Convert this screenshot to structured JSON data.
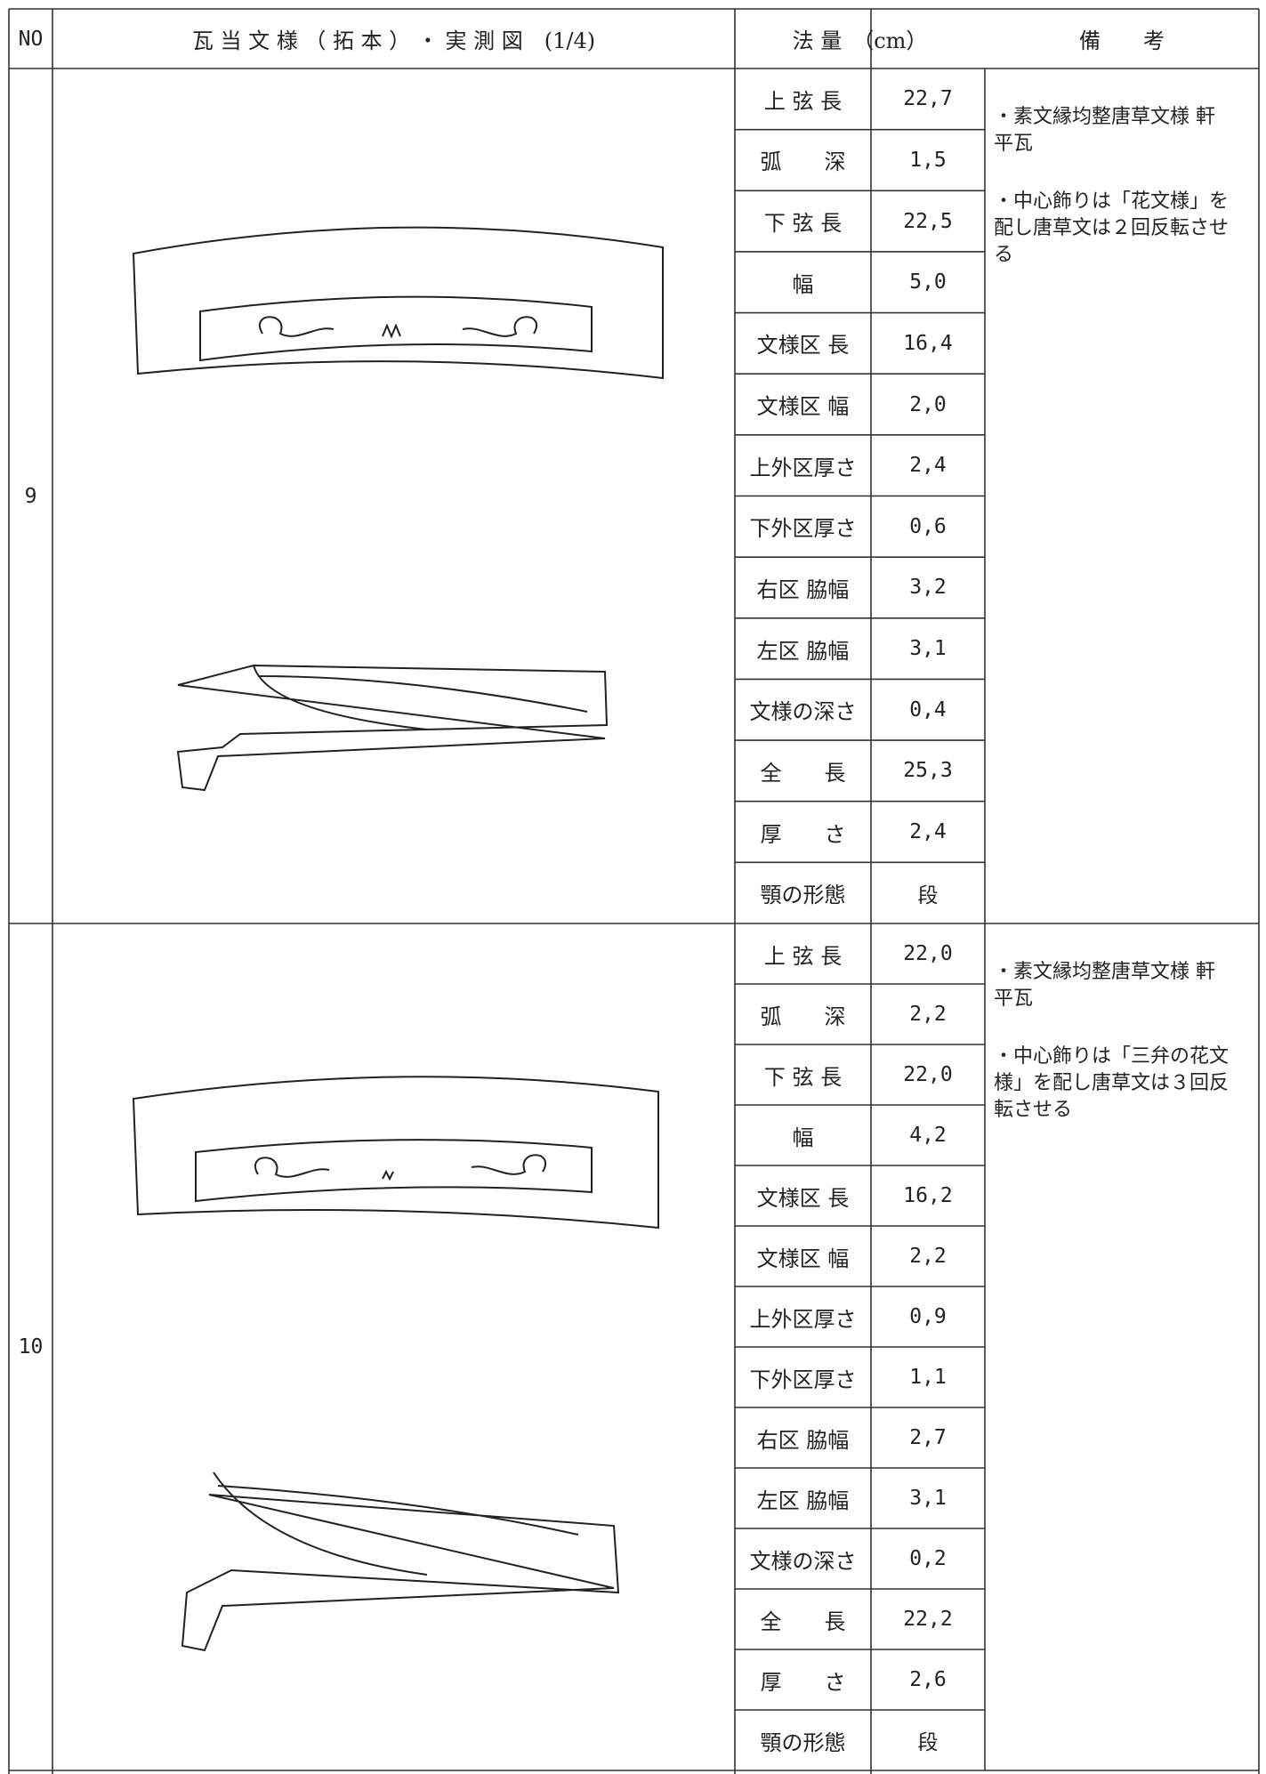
{
  "header": {
    "no": "NO",
    "drawing": "瓦 当 文 様 （ 拓 本 ） ・ 実 測 図　(1/4)",
    "measure": "法 量　（cm）",
    "remarks": "備　　考"
  },
  "rows": [
    {
      "no": "9",
      "measures": [
        [
          "上 弦 長",
          "22,7"
        ],
        [
          "弧　　深",
          "1,5"
        ],
        [
          "下 弦 長",
          "22,5"
        ],
        [
          "幅",
          "5,0"
        ],
        [
          "文様区 長",
          "16,4"
        ],
        [
          "文様区 幅",
          "2,0"
        ],
        [
          "上外区厚さ",
          "2,4"
        ],
        [
          "下外区厚さ",
          "0,6"
        ],
        [
          "右区 脇幅",
          "3,2"
        ],
        [
          "左区 脇幅",
          "3,1"
        ],
        [
          "文様の深さ",
          "0,4"
        ],
        [
          "全　　長",
          "25,3"
        ],
        [
          "厚　　さ",
          "2,4"
        ],
        [
          "顎の形態",
          "段"
        ]
      ],
      "remarks": [
        "・素文縁均整唐草文様 軒平瓦",
        "・中心飾りは「花文様」を配し唐草文は２回反転させる"
      ]
    },
    {
      "no": "10",
      "measures": [
        [
          "上 弦 長",
          "22,0"
        ],
        [
          "弧　　深",
          "2,2"
        ],
        [
          "下 弦 長",
          "22,0"
        ],
        [
          "幅",
          "4,2"
        ],
        [
          "文様区 長",
          "16,2"
        ],
        [
          "文様区 幅",
          "2,2"
        ],
        [
          "上外区厚さ",
          "0,9"
        ],
        [
          "下外区厚さ",
          "1,1"
        ],
        [
          "右区 脇幅",
          "2,7"
        ],
        [
          "左区 脇幅",
          "3,1"
        ],
        [
          "文様の深さ",
          "0,2"
        ],
        [
          "全　　長",
          "22,2"
        ],
        [
          "厚　　さ",
          "2,6"
        ],
        [
          "顎の形態",
          "段"
        ]
      ],
      "remarks": [
        "・素文縁均整唐草文様 軒平瓦",
        "・中心飾りは「三弁の花文様」を配し唐草文は３回反転させる"
      ]
    }
  ]
}
